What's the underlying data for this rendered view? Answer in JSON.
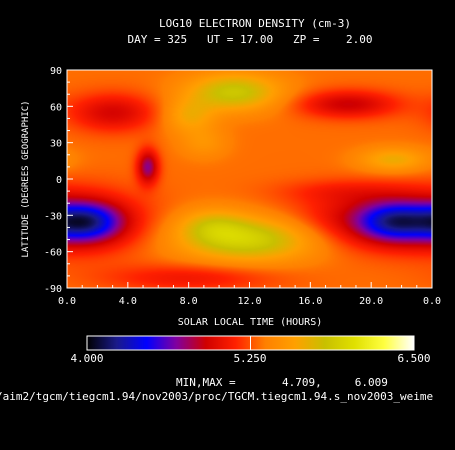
{
  "chart_data": {
    "type": "heatmap",
    "title": "LOG10 ELECTRON DENSITY (cm-3)",
    "subtitle": "DAY = 325   UT = 17.00   ZP =    2.00",
    "xlabel": "SOLAR LOCAL TIME (HOURS)",
    "ylabel": "LATITUDE (DEGREES GEOGRAPHIC)",
    "xlim": [
      0.0,
      24.0
    ],
    "ylim": [
      -90,
      90
    ],
    "xticks": [
      "0.0",
      "4.0",
      "8.0",
      "12.0",
      "16.0",
      "20.0",
      "0.0"
    ],
    "yticks": [
      "90",
      "60",
      "30",
      "0",
      "-30",
      "-60",
      "-90"
    ],
    "colorbar": {
      "min": 4.0,
      "max": 6.5,
      "labels": [
        "4.000",
        "5.250",
        "6.500"
      ],
      "stops": [
        "#000000",
        "#1a1a8a",
        "#0000ff",
        "#8000a0",
        "#d00000",
        "#ff2000",
        "#ff8000",
        "#ffa000",
        "#c8c000",
        "#e0e000",
        "#ffff40",
        "#ffffff"
      ]
    },
    "minmax_text": "MIN,MAX =       4.709,     6.009",
    "value_range": [
      4.709,
      6.009
    ],
    "file_path": "/aim2/tgcm/tiegcm1.94/nov2003/proc/TGCM.tiegcm1.94.s_nov2003_weime",
    "grid": false
  }
}
